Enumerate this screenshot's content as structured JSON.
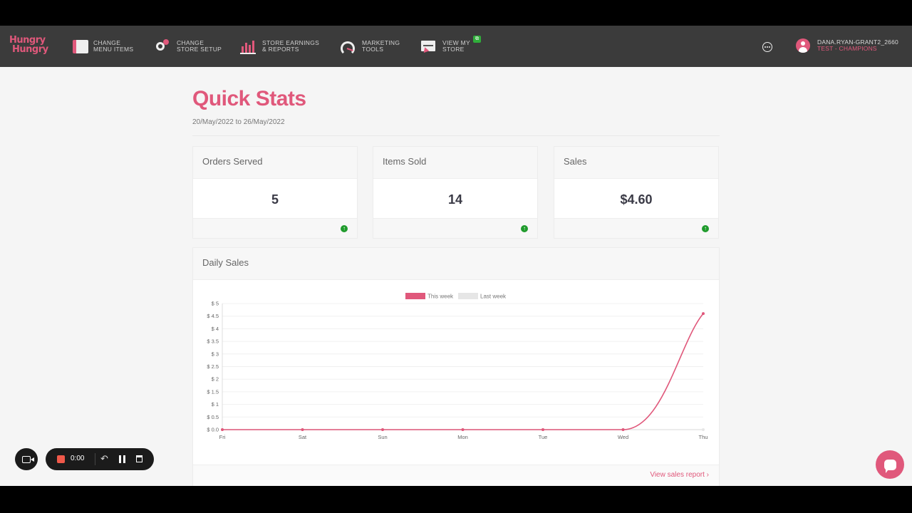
{
  "app": {
    "logo_line1": "Hungry",
    "logo_line2": "Hungry"
  },
  "nav": {
    "items": [
      {
        "line1": "CHANGE",
        "line2": "MENU ITEMS",
        "icon": "menu-book-icon"
      },
      {
        "line1": "CHANGE",
        "line2": "STORE SETUP",
        "icon": "gear-icon"
      },
      {
        "line1": "STORE EARNINGS",
        "line2": "& REPORTS",
        "icon": "bar-chart-icon"
      },
      {
        "line1": "MARKETING",
        "line2": "TOOLS",
        "icon": "gauge-icon"
      },
      {
        "line1": "VIEW MY",
        "line2": "STORE",
        "icon": "monitor-icon"
      }
    ],
    "external_badge": "⧉"
  },
  "user": {
    "name": "DANA.RYAN-GRANT2_2660",
    "role": "TEST - CHAMPIONS"
  },
  "page": {
    "title": "Quick Stats",
    "date_range": "20/May/2022 to 26/May/2022"
  },
  "stats": [
    {
      "label": "Orders Served",
      "value": "5",
      "trend": "up"
    },
    {
      "label": "Items Sold",
      "value": "14",
      "trend": "up"
    },
    {
      "label": "Sales",
      "value": "$4.60",
      "trend": "up"
    }
  ],
  "daily_sales": {
    "title": "Daily Sales",
    "link_label": "View sales report",
    "link_arrow": "›"
  },
  "chart_data": {
    "type": "line",
    "categories": [
      "Fri",
      "Sat",
      "Sun",
      "Mon",
      "Tue",
      "Wed",
      "Thu"
    ],
    "series": [
      {
        "name": "This week",
        "values": [
          0,
          0,
          0,
          0,
          0,
          0,
          4.6
        ],
        "color": "#e0587b"
      },
      {
        "name": "Last week",
        "values": [
          0,
          0,
          0,
          0,
          0,
          0,
          0
        ],
        "color": "#e6e6e6"
      }
    ],
    "ylim": [
      0,
      5
    ],
    "yticks": [
      0,
      0.5,
      1,
      1.5,
      2,
      2.5,
      3,
      3.5,
      4,
      4.5,
      5
    ],
    "ytick_labels": [
      "$ 0.0",
      "$ 0.5",
      "$ 1",
      "$ 1.5",
      "$ 2",
      "$ 2.5",
      "$ 3",
      "$ 3.5",
      "$ 4",
      "$ 4.5",
      "$ 5"
    ],
    "legend_position": "top-center",
    "grid": true
  },
  "recorder": {
    "time": "0:00",
    "undo": "↶"
  },
  "colors": {
    "accent": "#e0587b",
    "navbar": "#3b3b3b",
    "trend_up": "#1f9b2c"
  }
}
